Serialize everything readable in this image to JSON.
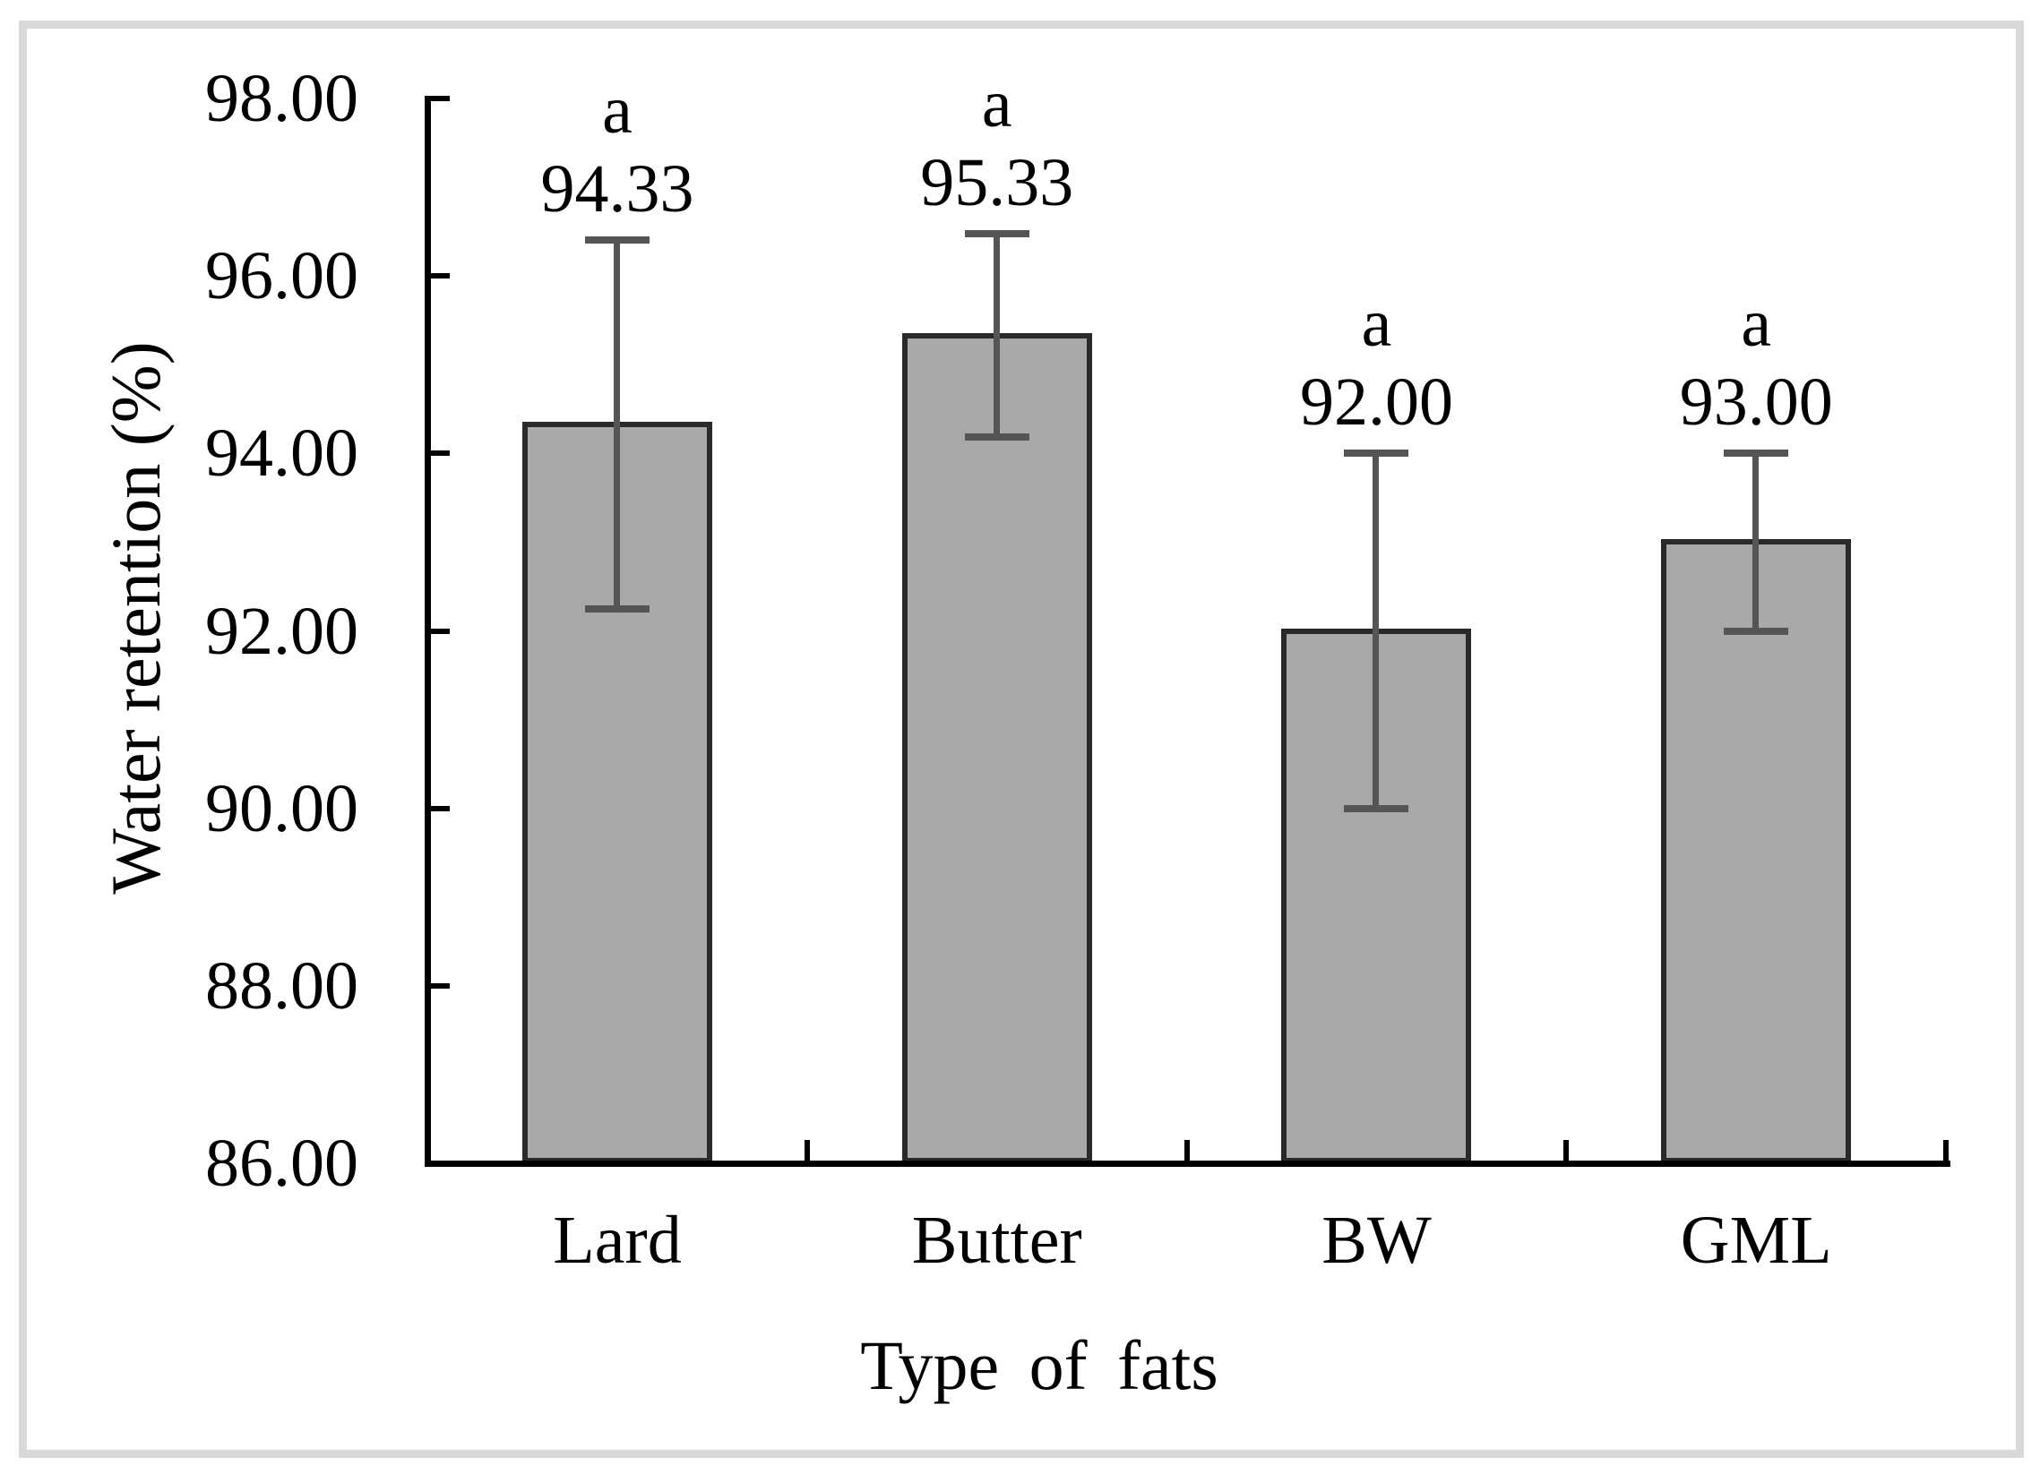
{
  "figure": {
    "background": "#ffffff",
    "frame_color": "#d9d9d9"
  },
  "chart_data": {
    "type": "bar",
    "title": "",
    "xlabel": "Type of fats",
    "ylabel": "Water retention (%)",
    "categories": [
      "Lard",
      "Butter",
      "BW",
      "GML"
    ],
    "values": [
      94.33,
      95.33,
      92.0,
      93.0
    ],
    "value_labels": [
      "94.33",
      "95.33",
      "92.00",
      "93.00"
    ],
    "significance_letters": [
      "a",
      "a",
      "a",
      "a"
    ],
    "errors": [
      2.08,
      1.15,
      2.0,
      1.0
    ],
    "error_bar_ranges": [
      {
        "low": 92.25,
        "high": 96.41
      },
      {
        "low": 94.18,
        "high": 96.48
      },
      {
        "low": 90.0,
        "high": 94.0
      },
      {
        "low": 92.0,
        "high": 94.0
      }
    ],
    "ylim": [
      86,
      98
    ],
    "ytick_step": 2,
    "yticks": [
      {
        "value": 98,
        "label": "98.00"
      },
      {
        "value": 96,
        "label": "96.00"
      },
      {
        "value": 94,
        "label": "94.00"
      },
      {
        "value": 92,
        "label": "92.00"
      },
      {
        "value": 90,
        "label": "90.00"
      },
      {
        "value": 88,
        "label": "88.00"
      },
      {
        "value": 86,
        "label": "86.00"
      }
    ],
    "grid": false,
    "legend": false,
    "colors": {
      "bar_fill": "#a9a9a9",
      "bar_outline": "#2a2a2a",
      "error_bar": "#555555",
      "axis": "#000000",
      "text": "#000000"
    }
  }
}
